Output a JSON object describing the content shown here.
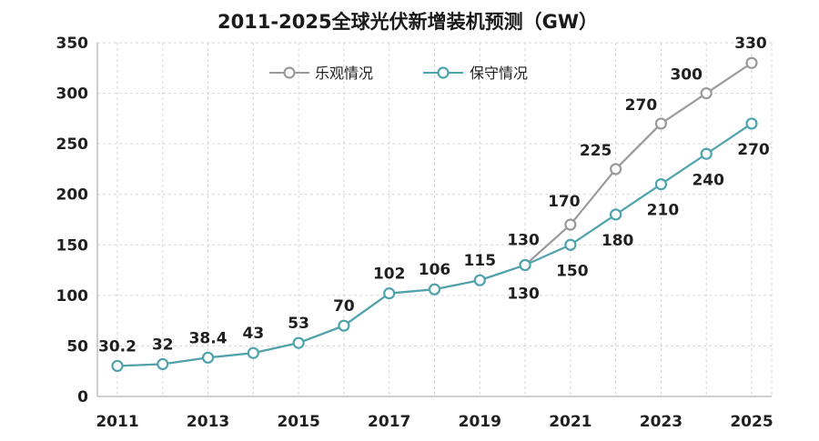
{
  "chart_data": {
    "type": "line",
    "title": "2011-2025全球光伏新增装机预测（GW）",
    "x": [
      2011,
      2012,
      2013,
      2014,
      2015,
      2016,
      2017,
      2018,
      2019,
      2020,
      2021,
      2022,
      2023,
      2024,
      2025
    ],
    "x_tick_labels": [
      "2011",
      "2013",
      "2015",
      "2017",
      "2019",
      "2021",
      "2023",
      "2025"
    ],
    "y_ticks": [
      "0",
      "50",
      "100",
      "150",
      "200",
      "250",
      "300",
      "350"
    ],
    "ylim": [
      0,
      350
    ],
    "xlabel": "",
    "ylabel": "",
    "grid": true,
    "legend_position": "top-center",
    "series": [
      {
        "name": "乐观情况",
        "color": "#9a9a9a",
        "values": [
          30.2,
          32,
          38.4,
          43,
          53,
          70,
          102,
          106,
          115,
          130,
          170,
          225,
          270,
          300,
          330
        ],
        "labels": [
          "30.2",
          "32",
          "38.4",
          "43",
          "53",
          "70",
          "102",
          "106",
          "115",
          "130",
          "170",
          "225",
          "270",
          "300",
          "330"
        ]
      },
      {
        "name": "保守情况",
        "color": "#4fa3ad",
        "values": [
          30.2,
          32,
          38.4,
          43,
          53,
          70,
          102,
          106,
          115,
          130,
          150,
          180,
          210,
          240,
          270
        ],
        "labels": [
          "130",
          "150",
          "180",
          "210",
          "240",
          "270"
        ]
      }
    ]
  }
}
